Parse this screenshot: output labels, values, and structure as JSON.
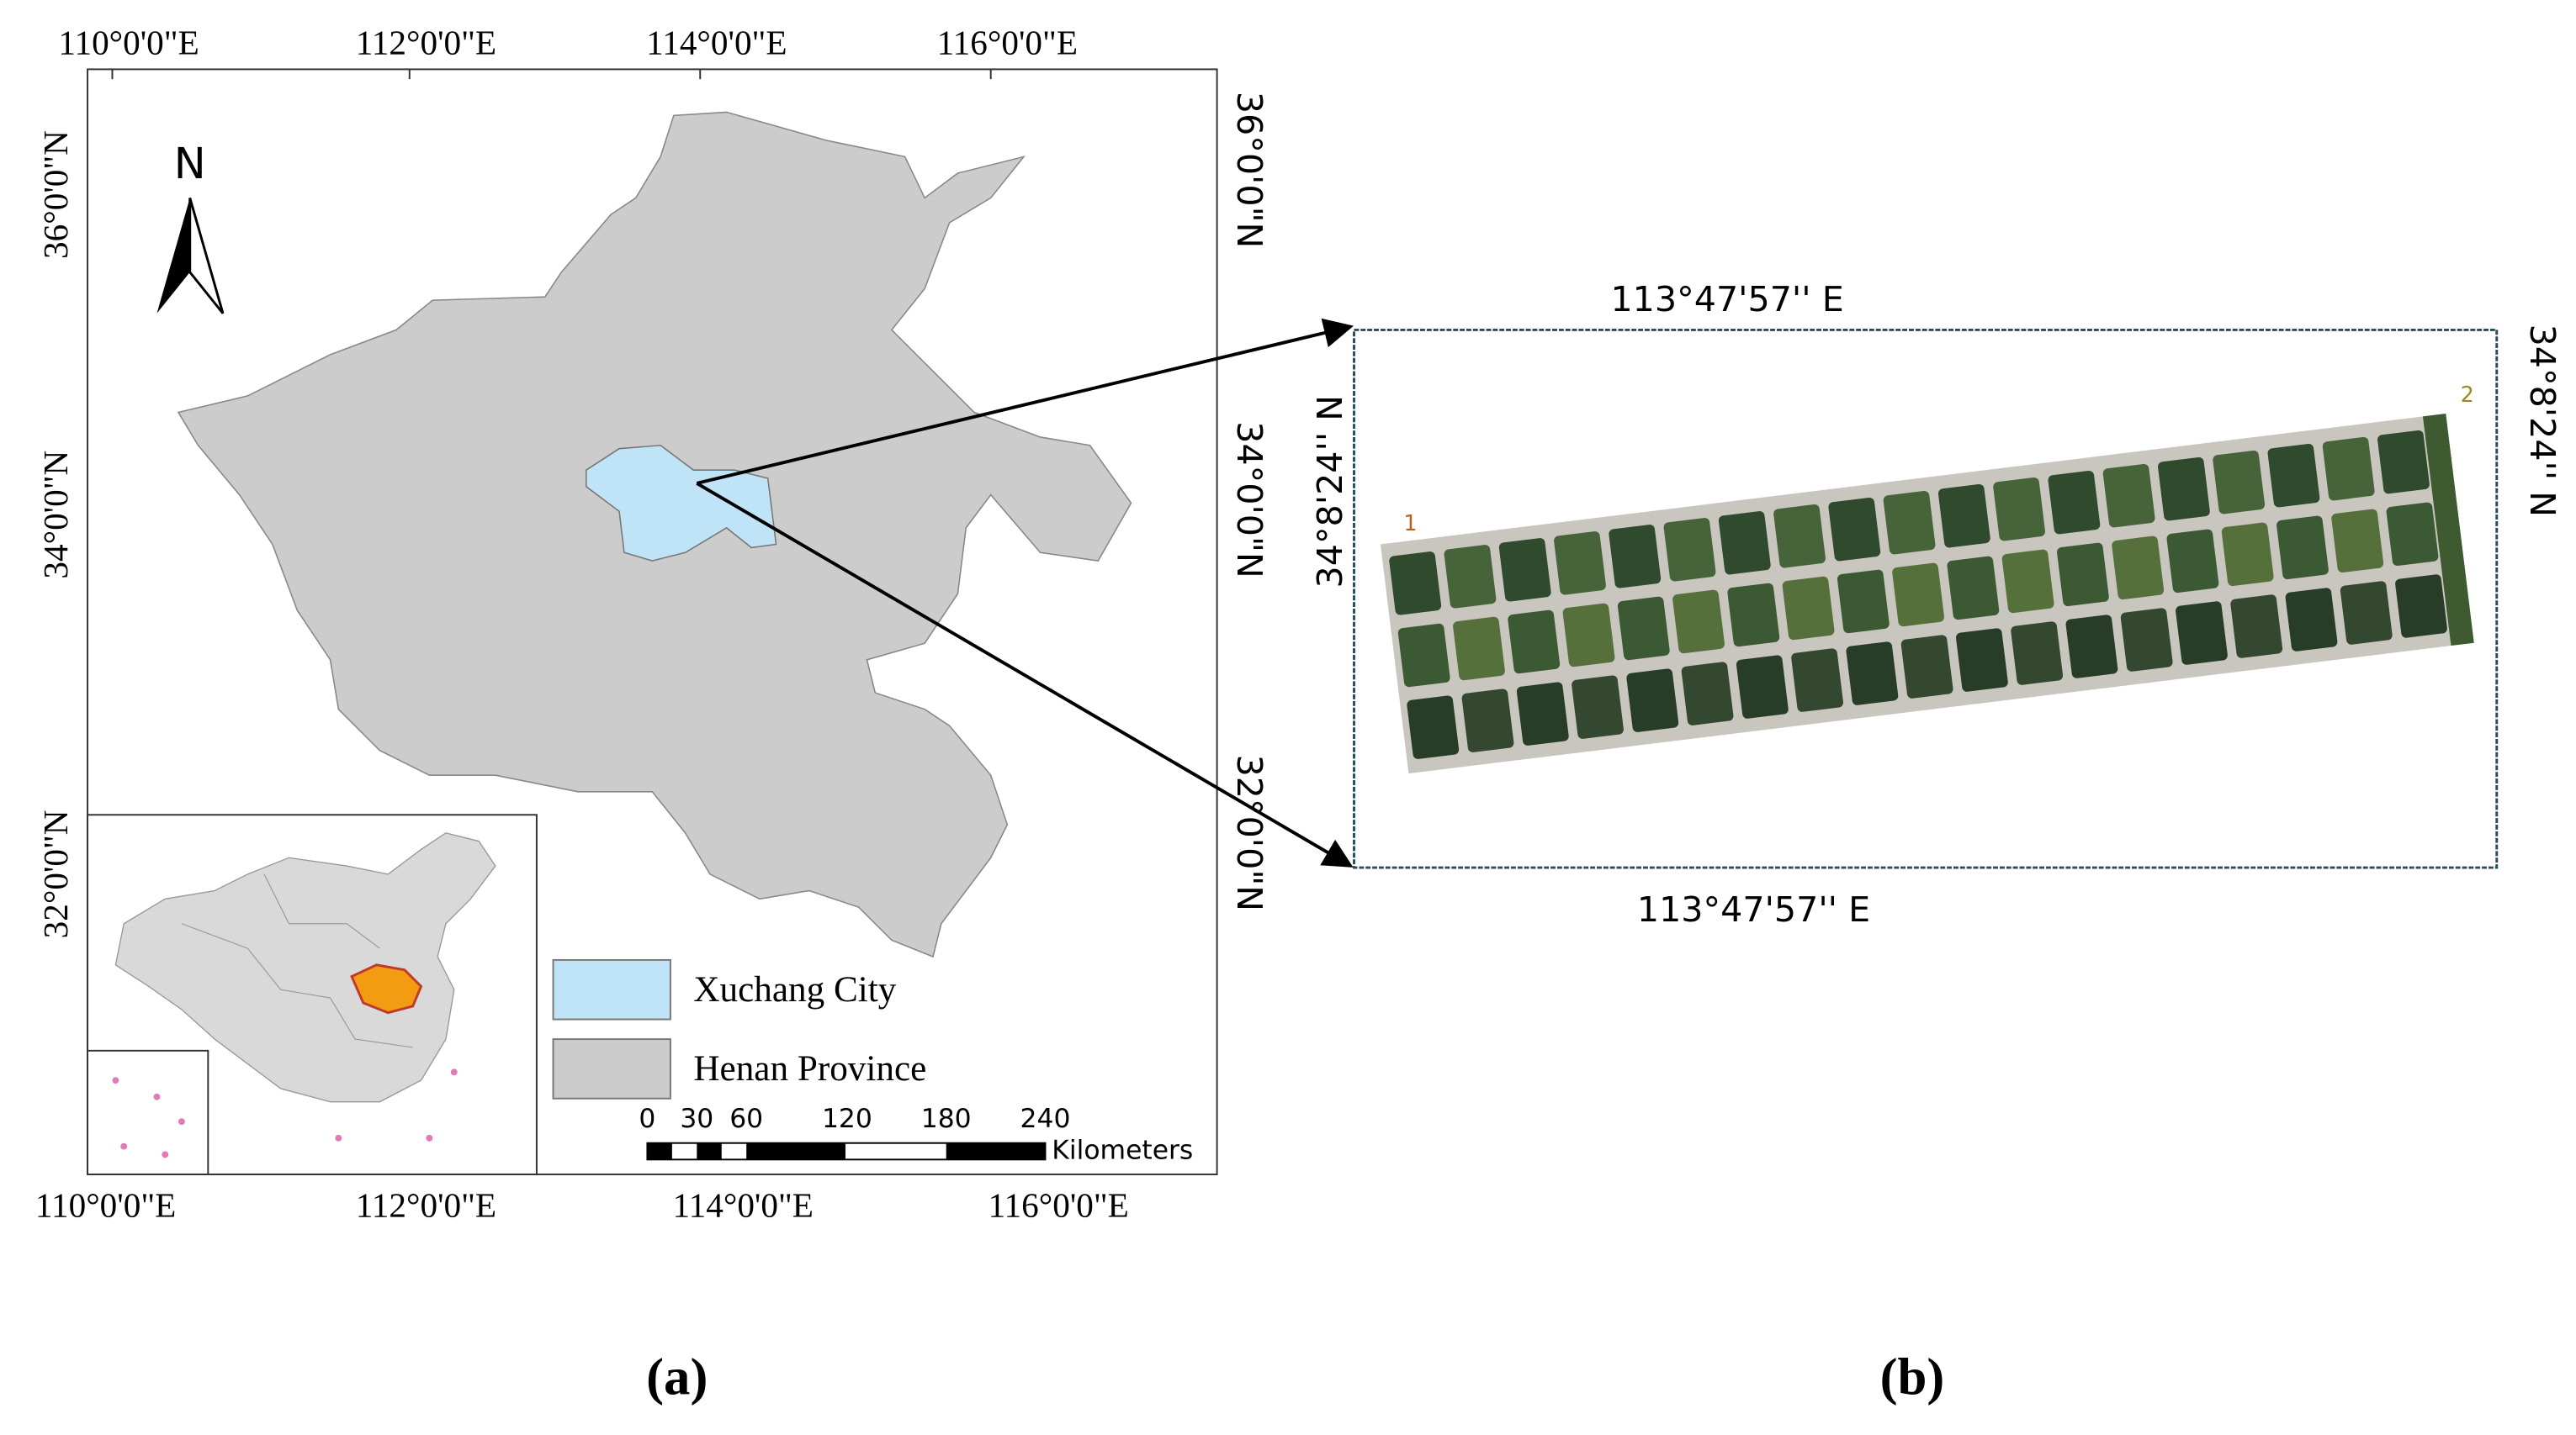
{
  "panel_a": {
    "top_labels": [
      "110°0'0\"E",
      "112°0'0\"E",
      "114°0'0\"E",
      "116°0'0\"E"
    ],
    "bottom_labels": [
      "110°0'0\"E",
      "112°0'0\"E",
      "114°0'0\"E",
      "116°0'0\"E"
    ],
    "left_labels": [
      "36°0'0\"N",
      "34°0'0\"N",
      "32°0'0\"N"
    ],
    "right_labels": [
      "36°0'0\"N",
      "34°0'0\"N",
      "32°0'0\"N"
    ],
    "north": "N",
    "legend": [
      "Xuchang City",
      "Henan Province"
    ],
    "scale_labels": [
      "0",
      "30",
      "60",
      "120",
      "180",
      "240"
    ],
    "scale_unit": "Kilometers",
    "caption": "(a)"
  },
  "panel_b": {
    "top_label": "113°47'57'' E",
    "bottom_label": "113°47'57'' E",
    "left_label": "34°8'24'' N",
    "right_label": "34°8'24'' N",
    "points": [
      "1",
      "2"
    ],
    "caption": "(b)"
  }
}
